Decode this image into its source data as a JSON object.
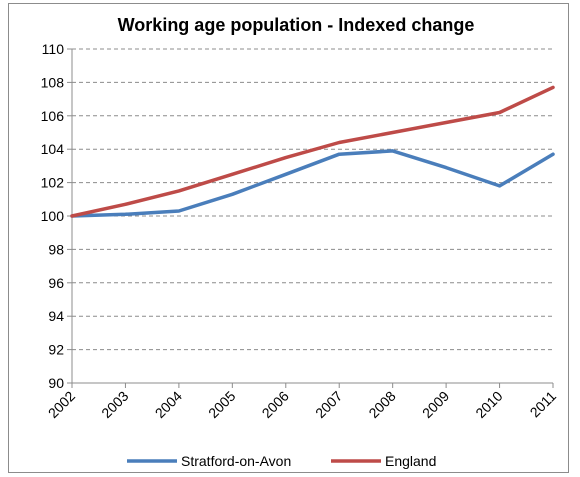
{
  "chart_data": {
    "type": "line",
    "title": "Working age population - Indexed change",
    "xlabel": "",
    "ylabel": "",
    "x": [
      "2002",
      "2003",
      "2004",
      "2005",
      "2006",
      "2007",
      "2008",
      "2009",
      "2010",
      "2011"
    ],
    "ylim": [
      90,
      110
    ],
    "yticks": [
      90,
      92,
      94,
      96,
      98,
      100,
      102,
      104,
      106,
      108,
      110
    ],
    "grid": true,
    "legend_position": "bottom",
    "series": [
      {
        "name": "Stratford-on-Avon",
        "color": "#4a7ebb",
        "values": [
          100.0,
          100.1,
          100.3,
          101.3,
          102.5,
          103.7,
          103.9,
          102.9,
          101.8,
          103.7
        ]
      },
      {
        "name": "England",
        "color": "#be4b48",
        "values": [
          100.0,
          100.7,
          101.5,
          102.5,
          103.5,
          104.4,
          105.0,
          105.6,
          106.2,
          107.7
        ]
      }
    ]
  }
}
